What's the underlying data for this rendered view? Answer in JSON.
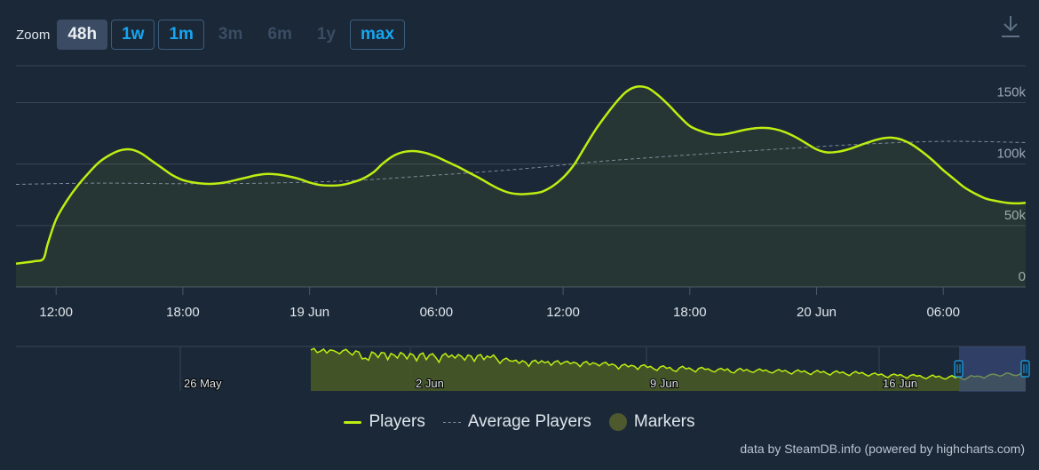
{
  "zoom": {
    "label": "Zoom",
    "buttons": [
      {
        "label": "48h",
        "state": "active"
      },
      {
        "label": "1w",
        "state": "enabled"
      },
      {
        "label": "1m",
        "state": "enabled"
      },
      {
        "label": "3m",
        "state": "disabled"
      },
      {
        "label": "6m",
        "state": "disabled"
      },
      {
        "label": "1y",
        "state": "disabled"
      },
      {
        "label": "max",
        "state": "enabled"
      }
    ]
  },
  "colors": {
    "players": "#beee11",
    "average": "#7d8a96",
    "markers": "#4e5a2e",
    "grid": "#3a4656",
    "background": "#1b2838",
    "navigator_mask": "#3d4f85",
    "navigator_handle": "#16a6f0"
  },
  "chart_data": {
    "type": "line",
    "x_unit": "hours from 12:00 18 Jun",
    "x_range": [
      -1.9,
      45.9
    ],
    "x_ticks": [
      {
        "x": 0,
        "label": "12:00"
      },
      {
        "x": 6,
        "label": "18:00"
      },
      {
        "x": 12,
        "label": "19 Jun"
      },
      {
        "x": 18,
        "label": "06:00"
      },
      {
        "x": 24,
        "label": "12:00"
      },
      {
        "x": 30,
        "label": "18:00"
      },
      {
        "x": 36,
        "label": "20 Jun"
      },
      {
        "x": 42,
        "label": "06:00"
      }
    ],
    "ylim": [
      0,
      180000
    ],
    "y_ticks": [
      {
        "value": 0,
        "label": "0"
      },
      {
        "value": 50000,
        "label": "50k"
      },
      {
        "value": 100000,
        "label": "100k"
      },
      {
        "value": 150000,
        "label": "150k"
      }
    ],
    "grid": true,
    "legend_position": "bottom-center",
    "series": [
      {
        "name": "Players",
        "style": "area-line",
        "points": [
          [
            -1.9,
            19000
          ],
          [
            -1.4,
            20000
          ],
          [
            -1.0,
            21000
          ],
          [
            -0.6,
            23000
          ],
          [
            -0.4,
            35000
          ],
          [
            0,
            55000
          ],
          [
            0.5,
            70000
          ],
          [
            1.0,
            82000
          ],
          [
            1.5,
            92000
          ],
          [
            2.0,
            101000
          ],
          [
            2.5,
            107000
          ],
          [
            3.0,
            111000
          ],
          [
            3.5,
            112000
          ],
          [
            4.0,
            109000
          ],
          [
            4.5,
            103000
          ],
          [
            5.0,
            97000
          ],
          [
            5.5,
            91000
          ],
          [
            6.0,
            87000
          ],
          [
            6.5,
            85000
          ],
          [
            7.0,
            84000
          ],
          [
            7.5,
            84000
          ],
          [
            8.0,
            85000
          ],
          [
            8.5,
            87000
          ],
          [
            9.0,
            89000
          ],
          [
            9.5,
            91000
          ],
          [
            10.0,
            92000
          ],
          [
            10.5,
            91500
          ],
          [
            11.0,
            90000
          ],
          [
            11.5,
            88000
          ],
          [
            12.0,
            85000
          ],
          [
            12.5,
            83000
          ],
          [
            13.0,
            82500
          ],
          [
            13.5,
            83000
          ],
          [
            14.0,
            85000
          ],
          [
            14.5,
            88000
          ],
          [
            15.0,
            93000
          ],
          [
            15.5,
            101000
          ],
          [
            16.0,
            107000
          ],
          [
            16.5,
            110000
          ],
          [
            17.0,
            110500
          ],
          [
            17.5,
            109000
          ],
          [
            18.0,
            106000
          ],
          [
            18.5,
            102000
          ],
          [
            19.0,
            98000
          ],
          [
            19.5,
            93500
          ],
          [
            20.0,
            89000
          ],
          [
            20.5,
            84000
          ],
          [
            21.0,
            79500
          ],
          [
            21.5,
            76500
          ],
          [
            22.0,
            75500
          ],
          [
            22.5,
            76000
          ],
          [
            23.0,
            77500
          ],
          [
            23.5,
            82000
          ],
          [
            24.0,
            89000
          ],
          [
            24.5,
            99000
          ],
          [
            25.0,
            113000
          ],
          [
            25.5,
            127000
          ],
          [
            26.0,
            139000
          ],
          [
            26.5,
            150000
          ],
          [
            27.0,
            159000
          ],
          [
            27.5,
            163000
          ],
          [
            28.0,
            162000
          ],
          [
            28.5,
            156000
          ],
          [
            29.0,
            148000
          ],
          [
            29.5,
            139000
          ],
          [
            30.0,
            131000
          ],
          [
            30.5,
            127000
          ],
          [
            31.0,
            124500
          ],
          [
            31.5,
            124000
          ],
          [
            32.0,
            125500
          ],
          [
            32.5,
            127500
          ],
          [
            33.0,
            129000
          ],
          [
            33.5,
            129500
          ],
          [
            34.0,
            128500
          ],
          [
            34.5,
            126000
          ],
          [
            35.0,
            122000
          ],
          [
            35.5,
            117000
          ],
          [
            36.0,
            112000
          ],
          [
            36.5,
            109500
          ],
          [
            37.0,
            110000
          ],
          [
            37.5,
            112000
          ],
          [
            38.0,
            115000
          ],
          [
            38.5,
            118000
          ],
          [
            39.0,
            120500
          ],
          [
            39.5,
            121500
          ],
          [
            40.0,
            120000
          ],
          [
            40.5,
            116000
          ],
          [
            41.0,
            110000
          ],
          [
            41.5,
            103000
          ],
          [
            42.0,
            95000
          ],
          [
            42.5,
            88000
          ],
          [
            43.0,
            81000
          ],
          [
            43.5,
            76000
          ],
          [
            44.0,
            72000
          ],
          [
            44.5,
            70000
          ],
          [
            45.0,
            68500
          ],
          [
            45.5,
            68000
          ],
          [
            45.9,
            68500
          ]
        ]
      },
      {
        "name": "Average Players",
        "style": "dashed",
        "points": [
          [
            -1.9,
            83500
          ],
          [
            2,
            84500
          ],
          [
            6,
            84000
          ],
          [
            10,
            84500
          ],
          [
            14,
            86500
          ],
          [
            18,
            91000
          ],
          [
            22,
            96000
          ],
          [
            26,
            102500
          ],
          [
            30,
            107500
          ],
          [
            34,
            112000
          ],
          [
            38,
            116000
          ],
          [
            42,
            118500
          ],
          [
            45.9,
            117500
          ]
        ]
      },
      {
        "name": "Markers",
        "style": "legend-only",
        "points": []
      }
    ],
    "navigator": {
      "x_labels": [
        "26 May",
        "2 Jun",
        "9 Jun",
        "16 Jun"
      ],
      "selected_range": "48h",
      "values": [
        160,
        166,
        150,
        155,
        163,
        148,
        160,
        158,
        152,
        145,
        157,
        162,
        150,
        140,
        156,
        152,
        125,
        128,
        120,
        152,
        146,
        130,
        150,
        148,
        122,
        146,
        140,
        128,
        150,
        143,
        125,
        146,
        140,
        118,
        142,
        148,
        122,
        140,
        145,
        130,
        112,
        138,
        146,
        132,
        140,
        128,
        142,
        135,
        120,
        140,
        136,
        116,
        138,
        142,
        122,
        136,
        130,
        140,
        125,
        108,
        122,
        128,
        118,
        116,
        120,
        108,
        118,
        112,
        96,
        115,
        120,
        108,
        118,
        110,
        115,
        100,
        113,
        118,
        104,
        112,
        116,
        106,
        112,
        108,
        95,
        110,
        115,
        102,
        110,
        106,
        98,
        108,
        112,
        100,
        105,
        100,
        86,
        100,
        104,
        94,
        100,
        96,
        84,
        98,
        102,
        92,
        96,
        86,
        80,
        94,
        98,
        88,
        92,
        80,
        76,
        90,
        96,
        86,
        90,
        82,
        74,
        88,
        92,
        84,
        86,
        78,
        74,
        84,
        88,
        80,
        86,
        74,
        70,
        82,
        88,
        78,
        84,
        76,
        72,
        80,
        86,
        78,
        82,
        74,
        70,
        78,
        84,
        76,
        80,
        72,
        66,
        76,
        82,
        74,
        78,
        70,
        64,
        74,
        80,
        72,
        76,
        68,
        62,
        72,
        78,
        70,
        74,
        66,
        60,
        70,
        76,
        68,
        72,
        64,
        58,
        66,
        70,
        62,
        66,
        58,
        52,
        62,
        66,
        60,
        64,
        56,
        50,
        60,
        64,
        58,
        60,
        52,
        48,
        56,
        62,
        54,
        58,
        50,
        46,
        54,
        60,
        52,
        56,
        48,
        44,
        52,
        60,
        56,
        58,
        56,
        50,
        58,
        64,
        66,
        62,
        58,
        62,
        70,
        68,
        62,
        60,
        64,
        72,
        74
      ]
    }
  },
  "legend": [
    {
      "name": "Players",
      "kind": "line"
    },
    {
      "name": "Average Players",
      "kind": "dash"
    },
    {
      "name": "Markers",
      "kind": "dot"
    }
  ],
  "credits": "data by SteamDB.info (powered by highcharts.com)",
  "icons": {
    "download": "download-icon"
  }
}
